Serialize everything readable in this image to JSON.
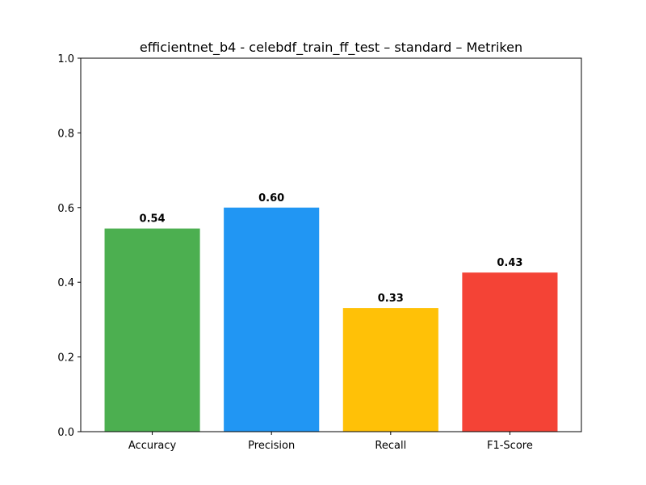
{
  "chart_data": {
    "type": "bar",
    "title": "efficientnet_b4 - celebdf_train_ff_test – standard – Metriken",
    "xlabel": "",
    "ylabel": "",
    "categories": [
      "Accuracy",
      "Precision",
      "Recall",
      "F1-Score"
    ],
    "values": [
      0.544,
      0.6,
      0.331,
      0.426
    ],
    "value_labels": [
      "0.54",
      "0.60",
      "0.33",
      "0.43"
    ],
    "colors": [
      "#4caf50",
      "#2196f3",
      "#ffc107",
      "#f44336"
    ],
    "ylim": [
      0,
      1.0
    ],
    "yticks": [
      0.0,
      0.2,
      0.4,
      0.6,
      0.8,
      1.0
    ],
    "ytick_labels": [
      "0.0",
      "0.2",
      "0.4",
      "0.6",
      "0.8",
      "1.0"
    ],
    "grid": false,
    "legend": "none"
  }
}
